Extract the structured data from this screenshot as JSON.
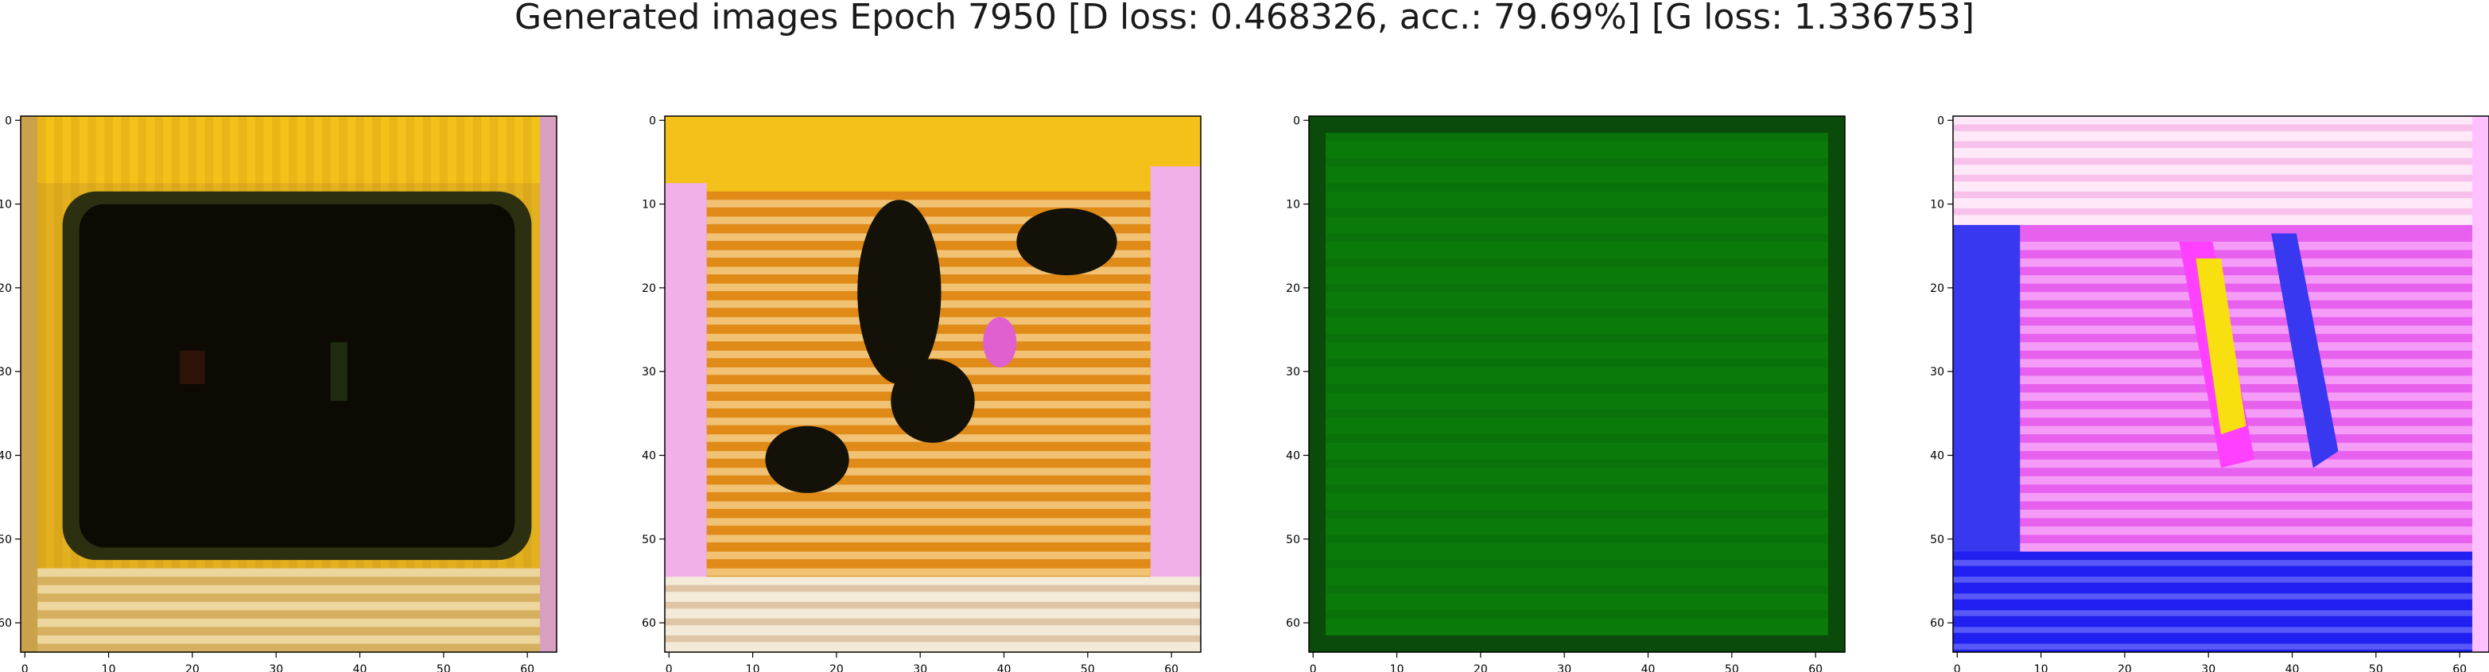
{
  "figure": {
    "title": "Generated images Epoch 7950 [D loss: 0.468326, acc.: 79.69%] [G loss: 1.336753]"
  },
  "axes": {
    "x_ticks": [
      "0",
      "10",
      "20",
      "30",
      "40",
      "50",
      "60"
    ],
    "y_ticks": [
      "0",
      "10",
      "20",
      "30",
      "40",
      "50",
      "60"
    ],
    "x_tick_values": [
      0,
      10,
      20,
      30,
      40,
      50,
      60
    ],
    "y_tick_values": [
      0,
      10,
      20,
      30,
      40,
      50,
      60
    ],
    "extent": [
      -0.5,
      63.5
    ]
  },
  "panels": [
    {
      "name": "generated-image-1",
      "palette": {
        "border": "#c9a24a",
        "frame": "#e3b020",
        "top_band": "#f2c21a",
        "inner": "#0d0a04",
        "inner_edge": "#2c3010",
        "bottom_stripes": "#d6b060"
      }
    },
    {
      "name": "generated-image-2",
      "palette": {
        "frame": "#f4c01a",
        "side": "#f0b0e8",
        "mid": "#e08a18",
        "dark": "#141208",
        "stripe": "#fff0c0",
        "bottom": "#f4ead8"
      }
    },
    {
      "name": "generated-image-3",
      "palette": {
        "border": "#0a4a0a",
        "fill": "#0a7a0a",
        "fill_dark": "#086808"
      }
    },
    {
      "name": "generated-image-4",
      "palette": {
        "top": "#ffe8f8",
        "main": "#e860ee",
        "blue": "#3838f0",
        "pale": "#ffd8ff",
        "yellow": "#f8e010",
        "bottom": "#2020f0"
      }
    }
  ]
}
